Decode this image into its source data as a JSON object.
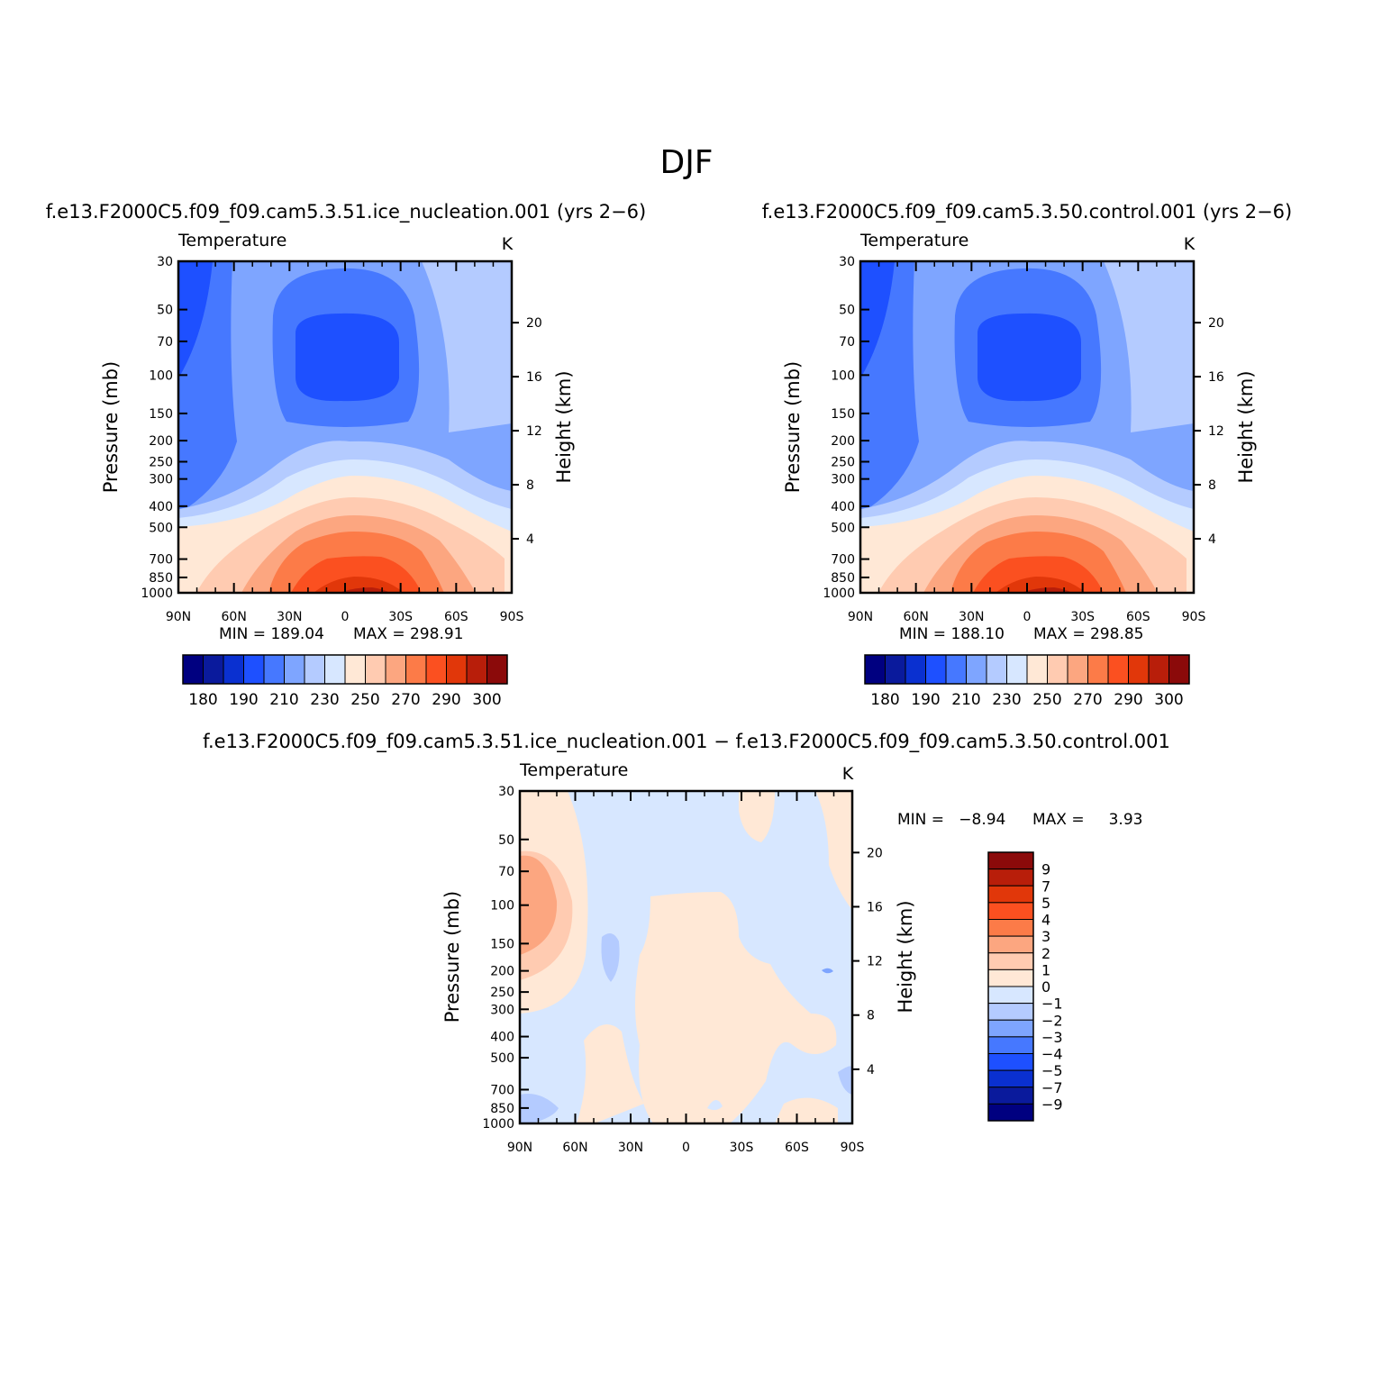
{
  "figure_title": "DJF",
  "colors": {
    "abs_levels": [
      "#000080",
      "#0a1a9c",
      "#0a30d0",
      "#1e50ff",
      "#4678ff",
      "#7ea5ff",
      "#b4cbff",
      "#d7e7ff",
      "#ffe8d6",
      "#ffcbb1",
      "#fca680",
      "#fc7b48",
      "#fb5020",
      "#e1370a",
      "#b81e0a",
      "#8b0a0a"
    ],
    "diff_levels": [
      "#000080",
      "#0a1a9c",
      "#0a30d0",
      "#1e50ff",
      "#4678ff",
      "#7ea5ff",
      "#b4cbff",
      "#d7e7ff",
      "#ffe8d6",
      "#ffcbb1",
      "#fca680",
      "#fc7b48",
      "#fb5020",
      "#e1370a",
      "#b81e0a",
      "#8b0a0a"
    ]
  },
  "chart_data": [
    {
      "type": "contour",
      "title": "f.e13.F2000C5.f09_f09.cam5.3.51.ice_nucleation.001  (yrs 2−6)",
      "variable": "Temperature",
      "units": "K",
      "ylabel": "Pressure (mb)",
      "ylabel_right": "Height (km)",
      "x_ticks": [
        "90N",
        "60N",
        "30N",
        "0",
        "30S",
        "60S",
        "90S"
      ],
      "y_ticks": [
        "30",
        "50",
        "70",
        "100",
        "150",
        "200",
        "250",
        "300",
        "400",
        "500",
        "700",
        "850",
        "1000"
      ],
      "y_ticks_right": [
        "4",
        "8",
        "12",
        "16",
        "20"
      ],
      "min_label": "MIN = 189.04",
      "max_label": "MAX = 298.91",
      "colorbar_labels": [
        "180",
        "190",
        "210",
        "230",
        "250",
        "270",
        "290",
        "300"
      ]
    },
    {
      "type": "contour",
      "title": "f.e13.F2000C5.f09_f09.cam5.3.50.control.001  (yrs 2−6)",
      "variable": "Temperature",
      "units": "K",
      "ylabel": "Pressure (mb)",
      "ylabel_right": "Height (km)",
      "x_ticks": [
        "90N",
        "60N",
        "30N",
        "0",
        "30S",
        "60S",
        "90S"
      ],
      "y_ticks": [
        "30",
        "50",
        "70",
        "100",
        "150",
        "200",
        "250",
        "300",
        "400",
        "500",
        "700",
        "850",
        "1000"
      ],
      "y_ticks_right": [
        "4",
        "8",
        "12",
        "16",
        "20"
      ],
      "min_label": "MIN = 188.10",
      "max_label": "MAX = 298.85",
      "colorbar_labels": [
        "180",
        "190",
        "210",
        "230",
        "250",
        "270",
        "290",
        "300"
      ]
    },
    {
      "type": "contour",
      "title": "f.e13.F2000C5.f09_f09.cam5.3.51.ice_nucleation.001 − f.e13.F2000C5.f09_f09.cam5.3.50.control.001",
      "variable": "Temperature",
      "units": "K",
      "ylabel": "Pressure (mb)",
      "ylabel_right": "Height (km)",
      "x_ticks": [
        "90N",
        "60N",
        "30N",
        "0",
        "30S",
        "60S",
        "90S"
      ],
      "y_ticks": [
        "30",
        "50",
        "70",
        "100",
        "150",
        "200",
        "250",
        "300",
        "400",
        "500",
        "700",
        "850",
        "1000"
      ],
      "y_ticks_right": [
        "4",
        "8",
        "12",
        "16",
        "20"
      ],
      "min_label": "MIN =   −8.94",
      "max_label": "MAX =     3.93",
      "colorbar_labels": [
        "9",
        "7",
        "5",
        "4",
        "3",
        "2",
        "1",
        "0",
        "−1",
        "−2",
        "−3",
        "−4",
        "−5",
        "−7",
        "−9"
      ]
    }
  ]
}
